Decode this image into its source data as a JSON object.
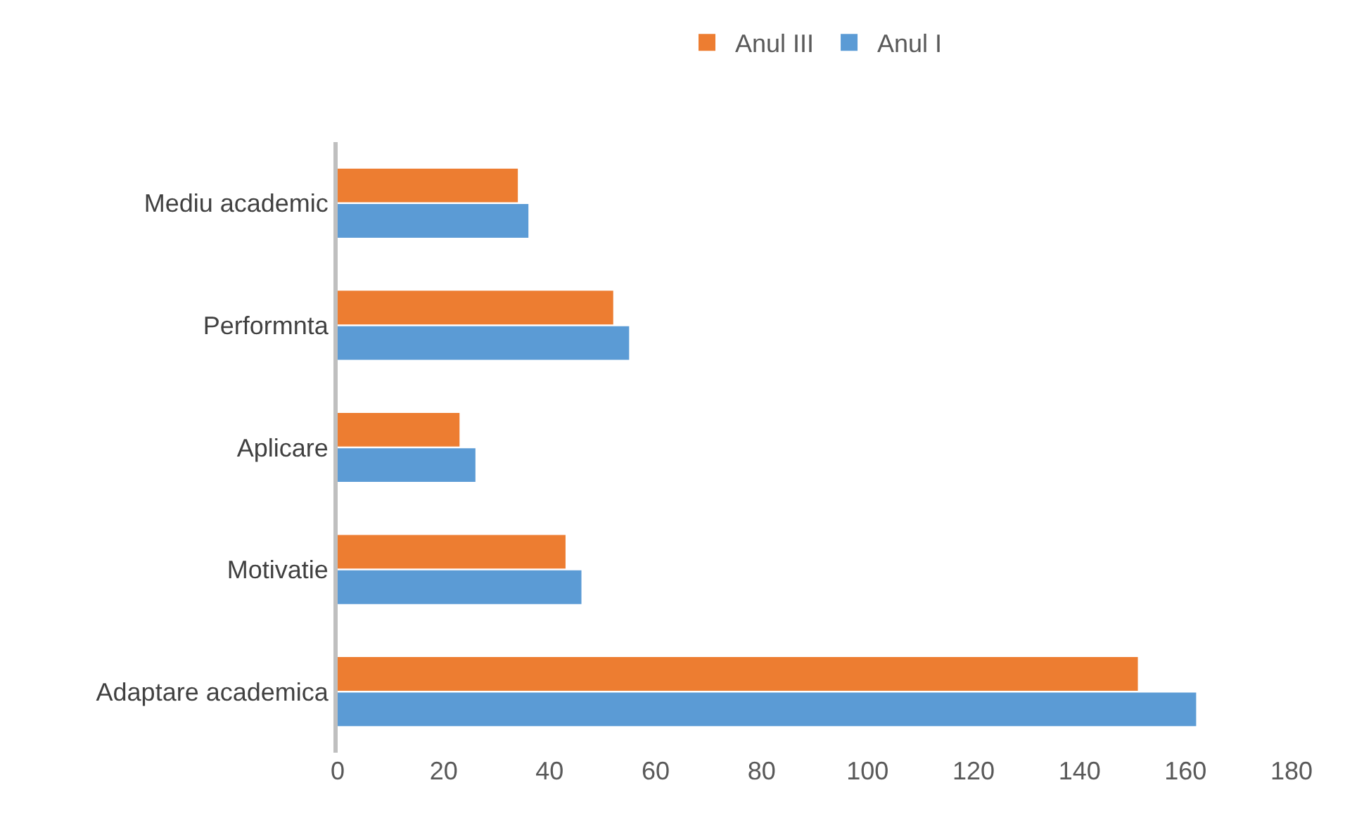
{
  "chart_data": {
    "type": "bar",
    "orientation": "horizontal",
    "categories": [
      "Mediu academic",
      "Performnta",
      "Aplicare",
      "Motivatie",
      "Adaptare academica"
    ],
    "series": [
      {
        "name": "Anul III",
        "color": "#ed7d31",
        "values": [
          34,
          52,
          23,
          43,
          151
        ]
      },
      {
        "name": "Anul I",
        "color": "#5b9bd5",
        "values": [
          36,
          55,
          26,
          46,
          162
        ]
      }
    ],
    "xlim": [
      0,
      180
    ],
    "xticks": [
      0,
      20,
      40,
      60,
      80,
      100,
      120,
      140,
      160,
      180
    ],
    "grid": false,
    "legend": "top"
  }
}
